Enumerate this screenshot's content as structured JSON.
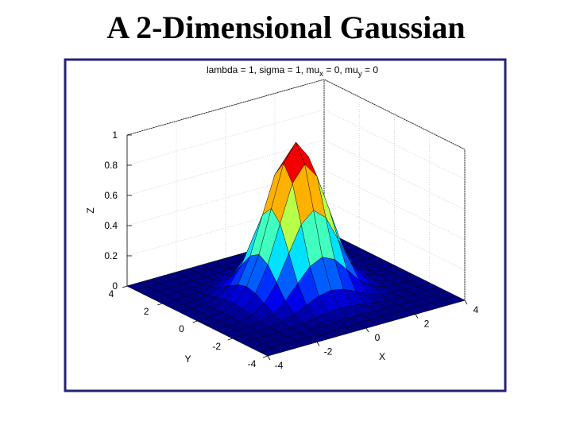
{
  "slide": {
    "title": "A 2-Dimensional Gaussian"
  },
  "chart_data": {
    "type": "surface",
    "title_parts": [
      "lambda = 1, sigma = 1, mu",
      "x",
      " = 0, mu",
      "y",
      " = 0"
    ],
    "xlabel": "X",
    "ylabel": "Y",
    "zlabel": "Z",
    "xlim": [
      -4,
      4
    ],
    "ylim": [
      -4,
      4
    ],
    "zlim": [
      0,
      1
    ],
    "xticks": [
      -4,
      -2,
      0,
      2,
      4
    ],
    "yticks": [
      -4,
      -2,
      0,
      2,
      4
    ],
    "zticks": [
      0,
      0.2,
      0.4,
      0.6,
      0.8,
      1
    ],
    "grid": true,
    "colormap": "jet",
    "edge_color": "#000000",
    "x": [
      -4,
      -3.5,
      -3,
      -2.5,
      -2,
      -1.5,
      -1,
      -0.5,
      0,
      0.5,
      1,
      1.5,
      2,
      2.5,
      3,
      3.5,
      4
    ],
    "y": [
      -4,
      -3.5,
      -3,
      -2.5,
      -2,
      -1.5,
      -1,
      -0.5,
      0,
      0.5,
      1,
      1.5,
      2,
      2.5,
      3,
      3.5,
      4
    ],
    "z": [
      [
        0,
        0,
        0,
        0,
        0,
        0,
        0,
        0,
        0,
        0,
        0,
        0,
        0,
        0,
        0,
        0,
        0
      ],
      [
        0,
        0,
        0,
        0,
        0,
        0.001,
        0.001,
        0.002,
        0.002,
        0.002,
        0.001,
        0.001,
        0,
        0,
        0,
        0,
        0
      ],
      [
        0,
        0,
        0,
        0,
        0.002,
        0.004,
        0.007,
        0.01,
        0.011,
        0.01,
        0.007,
        0.004,
        0.002,
        0,
        0,
        0,
        0
      ],
      [
        0,
        0,
        0,
        0.002,
        0.006,
        0.014,
        0.027,
        0.039,
        0.044,
        0.039,
        0.027,
        0.014,
        0.006,
        0.002,
        0,
        0,
        0
      ],
      [
        0,
        0,
        0.002,
        0.006,
        0.018,
        0.044,
        0.082,
        0.119,
        0.135,
        0.119,
        0.082,
        0.044,
        0.018,
        0.006,
        0.002,
        0,
        0
      ],
      [
        0,
        0.001,
        0.004,
        0.014,
        0.044,
        0.105,
        0.197,
        0.287,
        0.325,
        0.287,
        0.197,
        0.105,
        0.044,
        0.014,
        0.004,
        0.001,
        0
      ],
      [
        0,
        0.001,
        0.007,
        0.027,
        0.082,
        0.197,
        0.368,
        0.535,
        0.607,
        0.535,
        0.368,
        0.197,
        0.082,
        0.027,
        0.007,
        0.001,
        0
      ],
      [
        0,
        0.002,
        0.01,
        0.039,
        0.119,
        0.287,
        0.535,
        0.779,
        0.883,
        0.779,
        0.535,
        0.287,
        0.119,
        0.039,
        0.01,
        0.002,
        0
      ],
      [
        0,
        0.002,
        0.011,
        0.044,
        0.135,
        0.325,
        0.607,
        0.883,
        1,
        0.883,
        0.607,
        0.325,
        0.135,
        0.044,
        0.011,
        0.002,
        0
      ],
      [
        0,
        0.002,
        0.01,
        0.039,
        0.119,
        0.287,
        0.535,
        0.779,
        0.883,
        0.779,
        0.535,
        0.287,
        0.119,
        0.039,
        0.01,
        0.002,
        0
      ],
      [
        0,
        0.001,
        0.007,
        0.027,
        0.082,
        0.197,
        0.368,
        0.535,
        0.607,
        0.535,
        0.368,
        0.197,
        0.082,
        0.027,
        0.007,
        0.001,
        0
      ],
      [
        0,
        0.001,
        0.004,
        0.014,
        0.044,
        0.105,
        0.197,
        0.287,
        0.325,
        0.287,
        0.197,
        0.105,
        0.044,
        0.014,
        0.004,
        0.001,
        0
      ],
      [
        0,
        0,
        0.002,
        0.006,
        0.018,
        0.044,
        0.082,
        0.119,
        0.135,
        0.119,
        0.082,
        0.044,
        0.018,
        0.006,
        0.002,
        0,
        0
      ],
      [
        0,
        0,
        0,
        0.002,
        0.006,
        0.014,
        0.027,
        0.039,
        0.044,
        0.039,
        0.027,
        0.014,
        0.006,
        0.002,
        0,
        0,
        0
      ],
      [
        0,
        0,
        0,
        0,
        0.002,
        0.004,
        0.007,
        0.01,
        0.011,
        0.01,
        0.007,
        0.004,
        0.002,
        0,
        0,
        0,
        0
      ],
      [
        0,
        0,
        0,
        0,
        0,
        0.001,
        0.001,
        0.002,
        0.002,
        0.002,
        0.001,
        0.001,
        0,
        0,
        0,
        0,
        0
      ],
      [
        0,
        0,
        0,
        0,
        0,
        0,
        0,
        0,
        0,
        0,
        0,
        0,
        0,
        0,
        0,
        0,
        0
      ]
    ]
  }
}
